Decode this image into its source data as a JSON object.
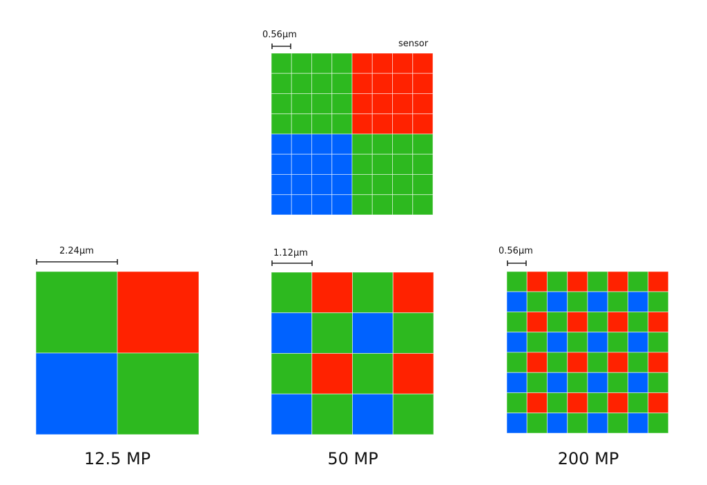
{
  "colors": {
    "G": "#2db91f",
    "R": "#ff2200",
    "B": "#0062ff",
    "gridline": "#cfe8cc"
  },
  "sensor": {
    "label": "sensor",
    "scale_label": "0.56μm",
    "pattern": [
      "GGGGRRRR",
      "GGGGRRRR",
      "GGGGRRRR",
      "GGGGRRRR",
      "BBBBGGGG",
      "BBBBGGGG",
      "BBBBGGGG",
      "BBBBGGGG"
    ]
  },
  "panels": [
    {
      "caption": "12.5 MP",
      "scale_label": "2.24μm",
      "pattern": [
        "GR",
        "BG"
      ]
    },
    {
      "caption": "50 MP",
      "scale_label": "1.12μm",
      "pattern": [
        "GRGR",
        "BGBG",
        "GRGR",
        "BGBG"
      ]
    },
    {
      "caption": "200 MP",
      "scale_label": "0.56μm",
      "pattern": [
        "GRGRGRGR",
        "BGBGBGBG",
        "GRGRGRGR",
        "BGBGBGBG",
        "GRGRGRGR",
        "BGBGBGBG",
        "GRGRGRGR",
        "BGBGBGBG"
      ]
    }
  ]
}
